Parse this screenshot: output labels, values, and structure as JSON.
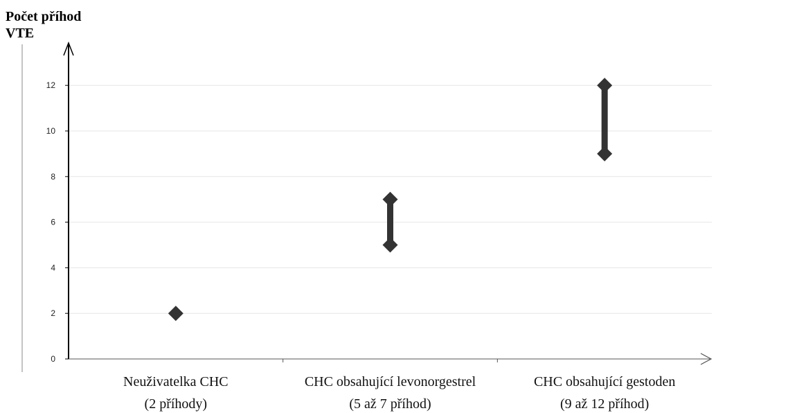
{
  "chart_data": {
    "type": "range",
    "ylabel_lines": [
      "Počet příhod",
      "VTE"
    ],
    "ylim": [
      0,
      13
    ],
    "yticks": [
      0,
      2,
      4,
      6,
      8,
      10,
      12
    ],
    "grid": true,
    "categories": [
      {
        "label": "Neuživatelka CHC",
        "sublabel": "(2 příhody)"
      },
      {
        "label": "CHC obsahující levonorgestrel",
        "sublabel": "(5 až 7 příhod)"
      },
      {
        "label": "CHC obsahující gestoden",
        "sublabel": "(9 až 12 příhod)"
      }
    ],
    "ranges": [
      {
        "low": 2,
        "high": 2
      },
      {
        "low": 5,
        "high": 7
      },
      {
        "low": 9,
        "high": 12
      }
    ],
    "colors": {
      "marker": "#333333",
      "grid": "#e6e6e6",
      "axis": "#000000"
    }
  }
}
